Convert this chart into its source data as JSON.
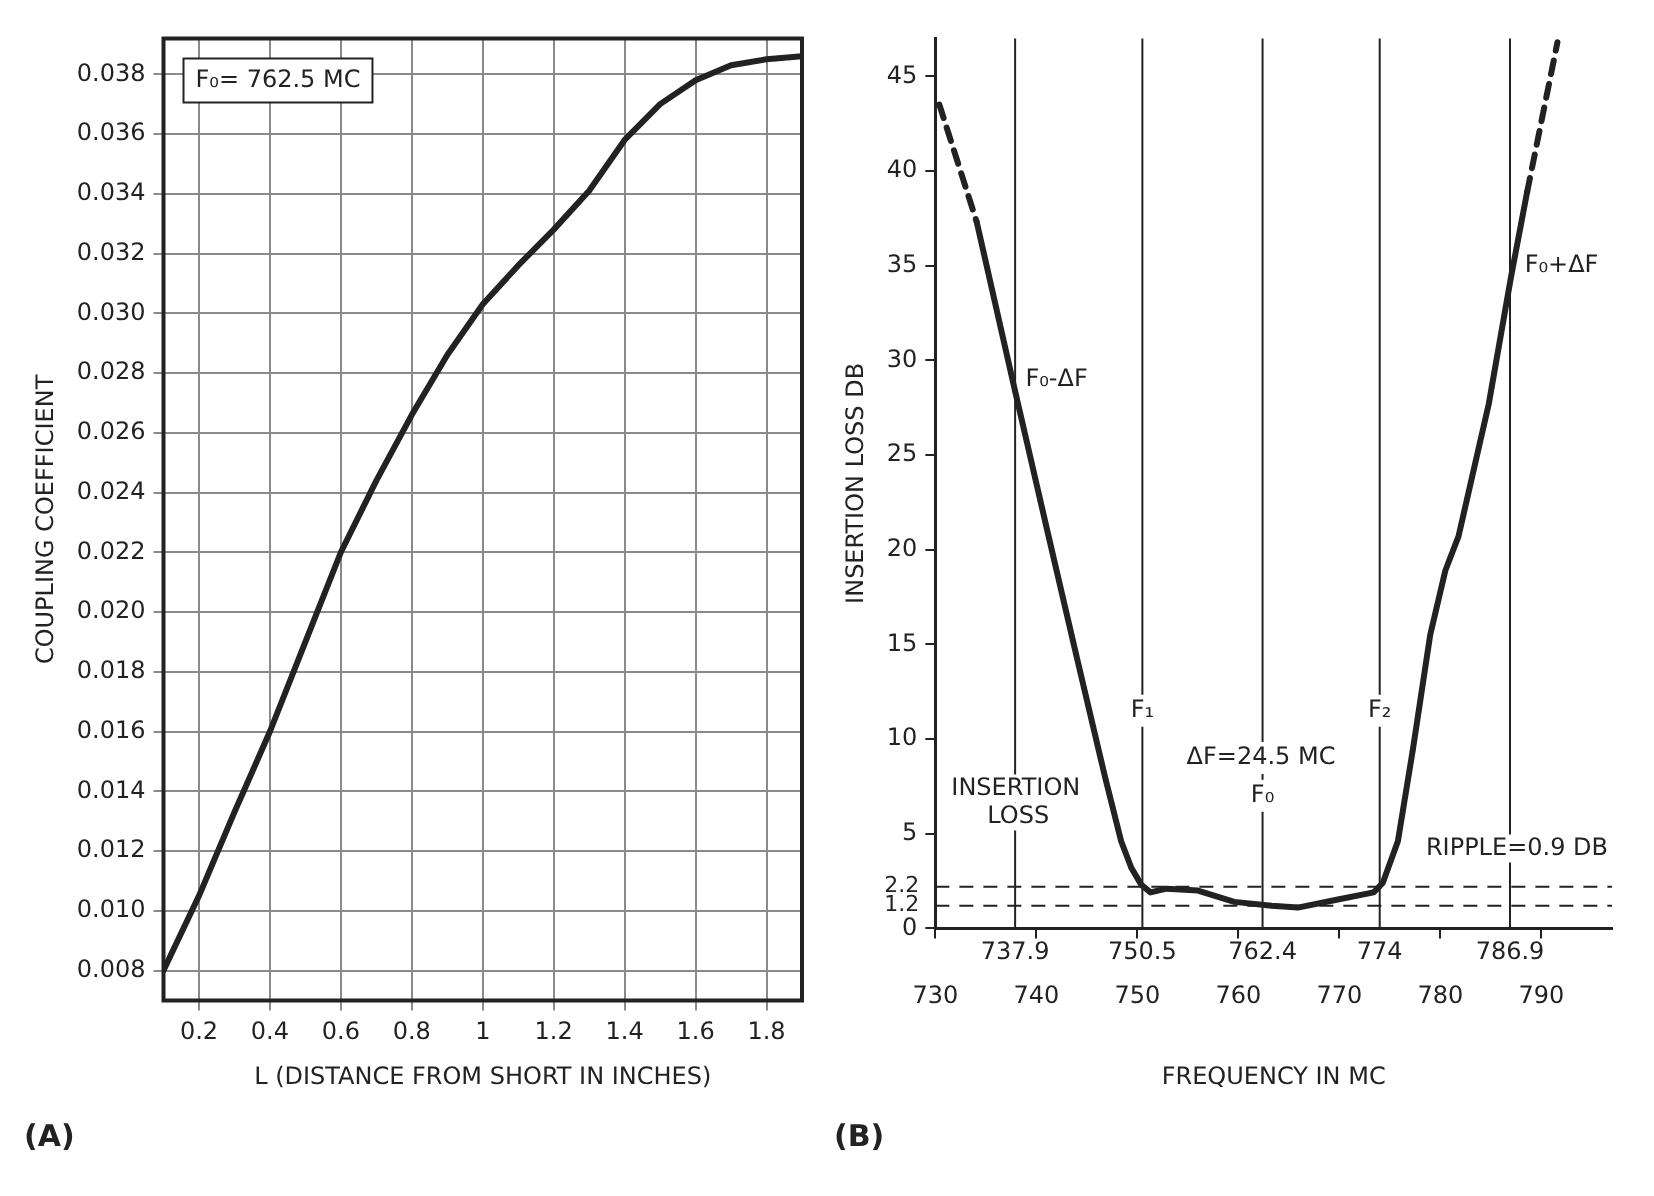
{
  "chart_data": [
    {
      "type": "line",
      "title": "(A)",
      "xlabel": "L (DISTANCE FROM SHORT IN INCHES)",
      "ylabel": "COUPLING COEFFICIENT",
      "annotations": [
        "F₀= 762.5 MC"
      ],
      "series": [
        {
          "color": "#222222",
          "x": [
            0.1,
            0.2,
            0.3,
            0.4,
            0.5,
            0.6,
            0.7,
            0.8,
            0.9,
            1.0,
            1.1,
            1.2,
            1.3,
            1.4,
            1.5,
            1.6,
            1.7,
            1.8,
            1.9
          ],
          "values": [
            0.008,
            0.0105,
            0.0133,
            0.016,
            0.019,
            0.022,
            0.0244,
            0.0266,
            0.0286,
            0.0303,
            0.0316,
            0.0328,
            0.0341,
            0.0358,
            0.037,
            0.0378,
            0.0383,
            0.0385,
            0.0386
          ]
        }
      ],
      "xlim": [
        0.1,
        1.9
      ],
      "xticks": [
        0.2,
        0.4,
        0.6,
        0.8,
        1,
        1.2,
        1.4,
        1.6,
        1.8
      ],
      "ylim": [
        0.007,
        0.0392
      ],
      "yticks": [
        0.008,
        {
          "value": 0.01,
          "label": "0.010"
        },
        0.012,
        0.014,
        0.016,
        0.018,
        {
          "value": 0.02,
          "label": "0.020"
        },
        0.022,
        0.024,
        0.026,
        0.028,
        {
          "value": 0.03,
          "label": "0.030"
        },
        0.032,
        0.034,
        0.036,
        0.038
      ],
      "grid": true
    },
    {
      "type": "line",
      "title": "(B)",
      "xlabel": "FREQUENCY IN MC",
      "ylabel": "INSERTION LOSS DB",
      "annotations": [
        {
          "text": "F₀-ΔF",
          "x": 742,
          "y": 29
        },
        {
          "text": "F₀+ΔF",
          "x": 792,
          "y": 35
        },
        {
          "text": "F₁",
          "x": 750.5,
          "y": 11.5
        },
        {
          "text": "F₂",
          "x": 774,
          "y": 11.5
        },
        {
          "text": "F₀",
          "x": 762.4,
          "y": 7
        },
        {
          "text": "ΔF=24.5 MC",
          "x": 762.25,
          "y": 9
        },
        "INSERTION LOSS",
        "RIPPLE=0.9 DB"
      ],
      "series": [
        {
          "color": "#222222",
          "line_style": "dashed",
          "x": [
            730.4,
            734.1
          ],
          "values": [
            43.5,
            37.3
          ]
        },
        {
          "color": "#222222",
          "line_style": "solid",
          "x": [
            734.1,
            737.8,
            741,
            744.1,
            746.8,
            748.4,
            749.4,
            750.4,
            751.3,
            752.9,
            756,
            759.6,
            763.3,
            765.9,
            769.6,
            773.4,
            774.3,
            775.8,
            777.3,
            779,
            780.5,
            781.8,
            784.8,
            787,
            788.6
          ],
          "values": [
            37.3,
            28.6,
            21.2,
            14.1,
            8,
            4.6,
            3.2,
            2.3,
            1.9,
            2.1,
            2.0,
            1.4,
            1.2,
            1.1,
            1.5,
            1.9,
            2.4,
            4.6,
            9.5,
            15.5,
            18.9,
            20.7,
            27.7,
            34.4,
            38.9
          ]
        },
        {
          "color": "#222222",
          "line_style": "dashed",
          "x": [
            788.6,
            791.6
          ],
          "values": [
            38.9,
            46.8
          ]
        }
      ],
      "ref_lines": [
        {
          "axis": "x",
          "value": 737.9,
          "label": "737.9"
        },
        {
          "axis": "x",
          "value": 750.5,
          "label": "750.5"
        },
        {
          "axis": "x",
          "value": 762.4,
          "label": "762.4"
        },
        {
          "axis": "x",
          "value": 774,
          "label": "774"
        },
        {
          "axis": "x",
          "value": 786.9,
          "label": "786.9"
        },
        {
          "axis": "y",
          "value": 2.2,
          "label": "2.2",
          "line_style": "dashed"
        },
        {
          "axis": "y",
          "value": 1.2,
          "label": "1.2",
          "line_style": "dashed"
        }
      ],
      "xlim": [
        730,
        797
      ],
      "xticks": [
        730,
        740,
        750,
        760,
        770,
        780,
        790
      ],
      "ylim": [
        0,
        47
      ],
      "yticks": [
        0,
        5,
        10,
        15,
        20,
        25,
        30,
        35,
        40,
        45
      ],
      "grid": false
    }
  ]
}
